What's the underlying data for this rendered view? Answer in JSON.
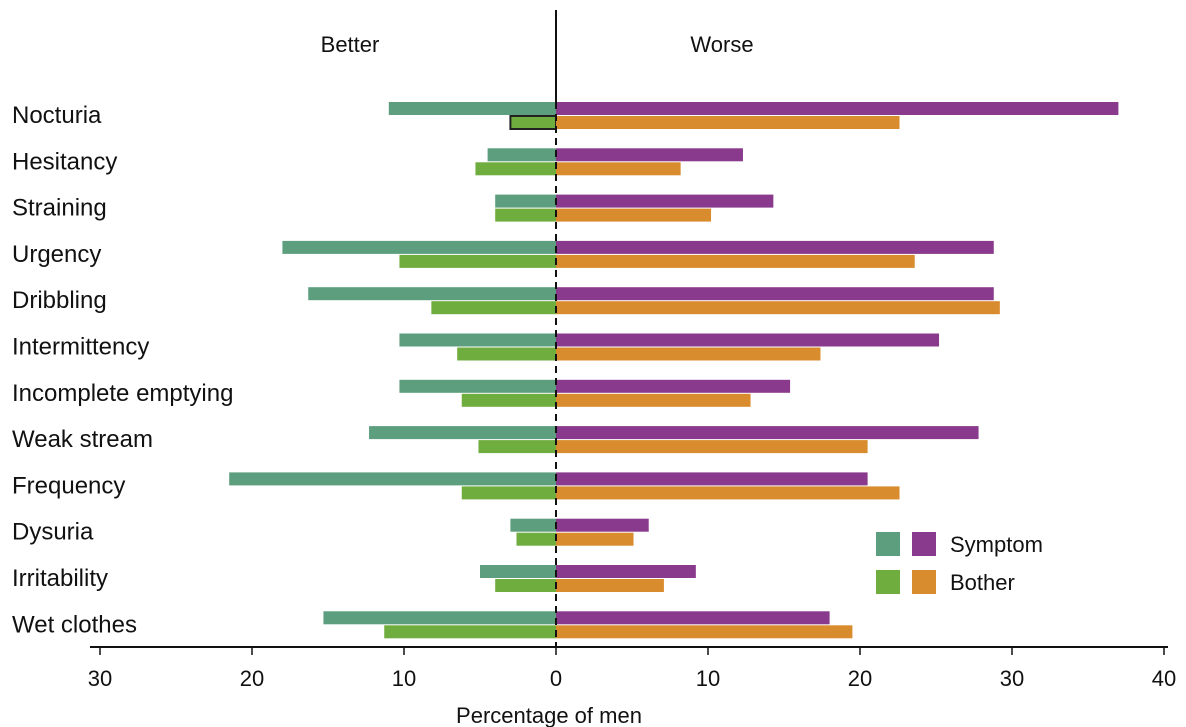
{
  "chart_data": {
    "type": "bar",
    "orientation": "horizontal-diverging",
    "title": "",
    "xlabel": "Percentage of men",
    "ylabel": "",
    "left_header": "Better",
    "right_header": "Worse",
    "xlim": [
      -30,
      40
    ],
    "xticks": [
      -30,
      -20,
      -10,
      0,
      10,
      20,
      30,
      40
    ],
    "xtick_labels": [
      "30",
      "20",
      "10",
      "0",
      "10",
      "20",
      "30",
      "40"
    ],
    "grid": false,
    "legend_position": "bottom-right",
    "categories": [
      "Nocturia",
      "Hesitancy",
      "Straining",
      "Urgency",
      "Dribbling",
      "Intermittency",
      "Incomplete emptying",
      "Weak stream",
      "Frequency",
      "Dysuria",
      "Irritability",
      "Wet clothes"
    ],
    "series": [
      {
        "name": "Symptom",
        "side": "better",
        "color": "#5c9e7e",
        "values": [
          11,
          4.5,
          4,
          18,
          16.3,
          10.3,
          10.3,
          12.3,
          21.5,
          3,
          5,
          15.3
        ]
      },
      {
        "name": "Bother",
        "side": "better",
        "color": "#70ad3f",
        "values": [
          3,
          5.3,
          4,
          10.3,
          8.2,
          6.5,
          6.2,
          5.1,
          6.2,
          2.6,
          4,
          11.3
        ]
      },
      {
        "name": "Symptom",
        "side": "worse",
        "color": "#8a3a8c",
        "values": [
          37,
          12.3,
          14.3,
          28.8,
          28.8,
          25.2,
          15.4,
          27.8,
          20.5,
          6.1,
          9.2,
          18
        ]
      },
      {
        "name": "Bother",
        "side": "worse",
        "color": "#d98c2e",
        "values": [
          22.6,
          8.2,
          10.2,
          23.6,
          29.2,
          17.4,
          12.8,
          20.5,
          22.6,
          5.1,
          7.1,
          19.5
        ]
      }
    ],
    "highlighted": {
      "category": "Nocturia",
      "series": "Bother",
      "side": "better"
    },
    "legend": [
      {
        "label": "Symptom",
        "colors": [
          "#5c9e7e",
          "#8a3a8c"
        ]
      },
      {
        "label": "Bother",
        "colors": [
          "#70ad3f",
          "#d98c2e"
        ]
      }
    ]
  }
}
